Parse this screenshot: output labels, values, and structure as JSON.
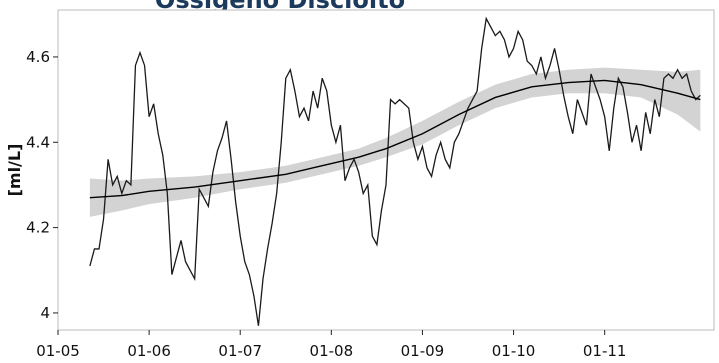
{
  "chart_data": {
    "type": "line",
    "title": "Ossigeno Disciolto",
    "ylabel": "[ml/L]",
    "xlabel": "",
    "x_ticks": [
      "01-05",
      "01-06",
      "01-07",
      "01-08",
      "01-09",
      "01-10",
      "01-11"
    ],
    "y_ticks": [
      "4",
      "4.2",
      "4.4",
      "4.6"
    ],
    "xlim": [
      2005.0,
      2012.2
    ],
    "ylim": [
      3.96,
      4.71
    ],
    "grid": false,
    "colors": {
      "series": "#1a1a1a",
      "trend": "#000000",
      "band": "#d3d3d3"
    },
    "series": [
      {
        "x": [
          2005.35,
          2005.4,
          2005.45,
          2005.5,
          2005.55,
          2005.6,
          2005.65,
          2005.7,
          2005.75,
          2005.8,
          2005.85,
          2005.9,
          2005.95,
          2006.0,
          2006.05,
          2006.1,
          2006.15,
          2006.2,
          2006.25,
          2006.3,
          2006.35,
          2006.4,
          2006.45,
          2006.5,
          2006.55,
          2006.6,
          2006.65,
          2006.7,
          2006.75,
          2006.8,
          2006.85,
          2006.9,
          2006.95,
          2007.0,
          2007.05,
          2007.1,
          2007.15,
          2007.2,
          2007.25,
          2007.3,
          2007.35,
          2007.4,
          2007.45,
          2007.5,
          2007.55,
          2007.6,
          2007.65,
          2007.7,
          2007.75,
          2007.8,
          2007.85,
          2007.9,
          2007.95,
          2008.0,
          2008.05,
          2008.1,
          2008.15,
          2008.2,
          2008.25,
          2008.3,
          2008.35,
          2008.4,
          2008.45,
          2008.5,
          2008.55,
          2008.6,
          2008.65,
          2008.7,
          2008.75,
          2008.8,
          2008.85,
          2008.9,
          2008.95,
          2009.0,
          2009.05,
          2009.1,
          2009.15,
          2009.2,
          2009.25,
          2009.3,
          2009.35,
          2009.4,
          2009.45,
          2009.5,
          2009.55,
          2009.6,
          2009.65,
          2009.7,
          2009.75,
          2009.8,
          2009.85,
          2009.9,
          2009.95,
          2010.0,
          2010.05,
          2010.1,
          2010.15,
          2010.2,
          2010.25,
          2010.3,
          2010.35,
          2010.4,
          2010.45,
          2010.5,
          2010.55,
          2010.6,
          2010.65,
          2010.7,
          2010.75,
          2010.8,
          2010.85,
          2010.9,
          2010.95,
          2011.0,
          2011.05,
          2011.1,
          2011.15,
          2011.2,
          2011.25,
          2011.3,
          2011.35,
          2011.4,
          2011.45,
          2011.5,
          2011.55,
          2011.6,
          2011.65,
          2011.7,
          2011.75,
          2011.8,
          2011.85,
          2011.9,
          2011.95,
          2012.0,
          2012.05
        ],
        "y": [
          4.11,
          4.15,
          4.15,
          4.22,
          4.36,
          4.3,
          4.32,
          4.28,
          4.31,
          4.3,
          4.58,
          4.61,
          4.58,
          4.46,
          4.49,
          4.42,
          4.37,
          4.28,
          4.09,
          4.13,
          4.17,
          4.12,
          4.1,
          4.08,
          4.29,
          4.27,
          4.25,
          4.33,
          4.38,
          4.41,
          4.45,
          4.36,
          4.26,
          4.18,
          4.12,
          4.09,
          4.04,
          3.97,
          4.08,
          4.15,
          4.21,
          4.28,
          4.4,
          4.55,
          4.57,
          4.52,
          4.46,
          4.48,
          4.45,
          4.52,
          4.48,
          4.55,
          4.52,
          4.44,
          4.4,
          4.44,
          4.31,
          4.34,
          4.36,
          4.33,
          4.28,
          4.3,
          4.18,
          4.16,
          4.24,
          4.3,
          4.5,
          4.49,
          4.5,
          4.49,
          4.48,
          4.4,
          4.36,
          4.39,
          4.34,
          4.32,
          4.37,
          4.4,
          4.36,
          4.34,
          4.4,
          4.42,
          4.45,
          4.48,
          4.5,
          4.52,
          4.62,
          4.69,
          4.67,
          4.65,
          4.66,
          4.64,
          4.6,
          4.62,
          4.66,
          4.64,
          4.59,
          4.58,
          4.56,
          4.6,
          4.55,
          4.58,
          4.62,
          4.57,
          4.51,
          4.46,
          4.42,
          4.5,
          4.47,
          4.44,
          4.56,
          4.53,
          4.5,
          4.46,
          4.38,
          4.48,
          4.55,
          4.53,
          4.47,
          4.4,
          4.44,
          4.38,
          4.47,
          4.42,
          4.5,
          4.46,
          4.55,
          4.56,
          4.55,
          4.57,
          4.55,
          4.56,
          4.52,
          4.5,
          4.51
        ]
      },
      {
        "x": [
          2005.35,
          2005.7,
          2006.0,
          2006.5,
          2007.0,
          2007.5,
          2007.8,
          2008.0,
          2008.3,
          2008.6,
          2009.0,
          2009.4,
          2009.8,
          2010.2,
          2010.6,
          2011.0,
          2011.4,
          2011.8,
          2012.05
        ],
        "y": [
          4.27,
          4.275,
          4.285,
          4.295,
          4.31,
          4.325,
          4.34,
          4.35,
          4.365,
          4.385,
          4.42,
          4.465,
          4.505,
          4.53,
          4.54,
          4.545,
          4.535,
          4.515,
          4.5
        ],
        "band_low": [
          4.225,
          4.24,
          4.255,
          4.27,
          4.29,
          4.305,
          4.32,
          4.33,
          4.345,
          4.365,
          4.395,
          4.44,
          4.48,
          4.505,
          4.515,
          4.515,
          4.505,
          4.465,
          4.425
        ],
        "band_high": [
          4.315,
          4.31,
          4.315,
          4.32,
          4.33,
          4.345,
          4.36,
          4.37,
          4.385,
          4.41,
          4.45,
          4.495,
          4.535,
          4.56,
          4.57,
          4.575,
          4.57,
          4.565,
          4.57
        ]
      }
    ]
  }
}
